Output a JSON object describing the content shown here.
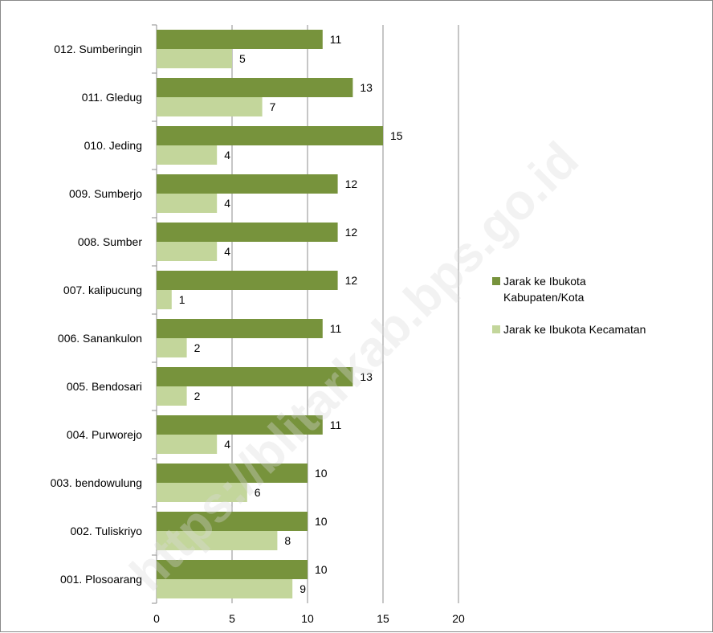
{
  "chart_data": {
    "type": "bar",
    "orientation": "horizontal",
    "categories": [
      "001. Plosoarang",
      "002. Tuliskriyo",
      "003. bendowulung",
      "004. Purworejo",
      "005. Bendosari",
      "006. Sanankulon",
      "007. kalipucung",
      "008. Sumber",
      "009. Sumberjo",
      "010. Jeding",
      "011. Gledug",
      "012. Sumberingin"
    ],
    "series": [
      {
        "name": "Jarak ke Ibukota Kabupaten/Kota",
        "legend_lines": [
          "Jarak ke Ibukota",
          "Kabupaten/Kota"
        ],
        "color": "#77933c",
        "values": [
          10,
          10,
          10,
          11,
          13,
          11,
          12,
          12,
          12,
          15,
          13,
          11
        ]
      },
      {
        "name": "Jarak ke Ibukota Kecamatan",
        "legend_lines": [
          "Jarak ke Ibukota Kecamatan"
        ],
        "color": "#c3d69b",
        "values": [
          9,
          8,
          6,
          4,
          2,
          2,
          1,
          4,
          4,
          4,
          7,
          5
        ]
      }
    ],
    "xlim": [
      0,
      20
    ],
    "xticks": [
      0,
      5,
      10,
      15,
      20
    ],
    "grid": "vertical major gridlines",
    "legend_position": "right",
    "data_labels": true,
    "title": "",
    "xlabel": "",
    "ylabel": ""
  },
  "watermark": "https://blitarkab.bps.go.id"
}
